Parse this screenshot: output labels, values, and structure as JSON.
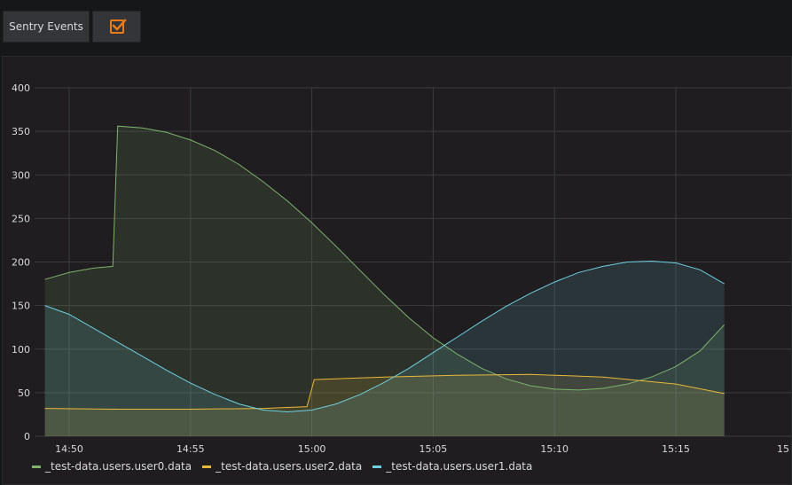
{
  "toolbar": {
    "sentry_label": "Sentry Events",
    "checkbox_checked": true,
    "accent_color": "#eb7b18"
  },
  "chart_data": {
    "type": "area",
    "y_ticks": [
      "0",
      "50",
      "100",
      "150",
      "200",
      "250",
      "300",
      "350",
      "400"
    ],
    "ylim": [
      0,
      400
    ],
    "x_ticks": [
      "14:50",
      "14:55",
      "15:00",
      "15:05",
      "15:10",
      "15:15",
      "15"
    ],
    "xlim": [
      "14:49",
      "15:17"
    ],
    "grid": true,
    "legend": "bottom-left",
    "series": [
      {
        "name": "_test-data.users.user0.data",
        "color": "#7eb26d",
        "x": [
          "14:49",
          "14:50",
          "14:51",
          "14:51.8",
          "14:52",
          "14:53",
          "14:54",
          "14:55",
          "14:56",
          "14:57",
          "14:58",
          "14:59",
          "15:00",
          "15:01",
          "15:02",
          "15:03",
          "15:04",
          "15:05",
          "15:06",
          "15:07",
          "15:08",
          "15:09",
          "15:10",
          "15:11",
          "15:12",
          "15:13",
          "15:14",
          "15:15",
          "15:16",
          "15:17"
        ],
        "values": [
          180,
          188,
          193,
          195,
          356,
          354,
          349,
          340,
          328,
          312,
          292,
          270,
          245,
          218,
          190,
          162,
          136,
          113,
          94,
          78,
          66,
          58,
          54,
          53,
          55,
          60,
          68,
          80,
          98,
          128
        ]
      },
      {
        "name": "_test-data.users.user2.data",
        "color": "#eab839",
        "x": [
          "14:49",
          "14:52",
          "14:55",
          "14:58",
          "14:59.8",
          "15:00.1",
          "15:03",
          "15:06",
          "15:09",
          "15:12",
          "15:15",
          "15:17"
        ],
        "values": [
          32,
          31,
          31,
          32,
          34,
          65,
          68,
          70,
          71,
          68,
          60,
          49
        ]
      },
      {
        "name": "_test-data.users.user1.data",
        "color": "#6ed0e0",
        "x": [
          "14:49",
          "14:50",
          "14:51",
          "14:52",
          "14:53",
          "14:54",
          "14:55",
          "14:56",
          "14:57",
          "14:58",
          "14:59",
          "15:00",
          "15:01",
          "15:02",
          "15:03",
          "15:04",
          "15:05",
          "15:06",
          "15:07",
          "15:08",
          "15:09",
          "15:10",
          "15:11",
          "15:12",
          "15:13",
          "15:14",
          "15:15",
          "15:16",
          "15:17"
        ],
        "values": [
          150,
          140,
          124,
          108,
          92,
          76,
          61,
          48,
          37,
          30,
          28,
          30,
          37,
          48,
          62,
          78,
          96,
          114,
          132,
          149,
          164,
          177,
          188,
          195,
          200,
          201,
          199,
          191,
          175
        ]
      }
    ]
  }
}
